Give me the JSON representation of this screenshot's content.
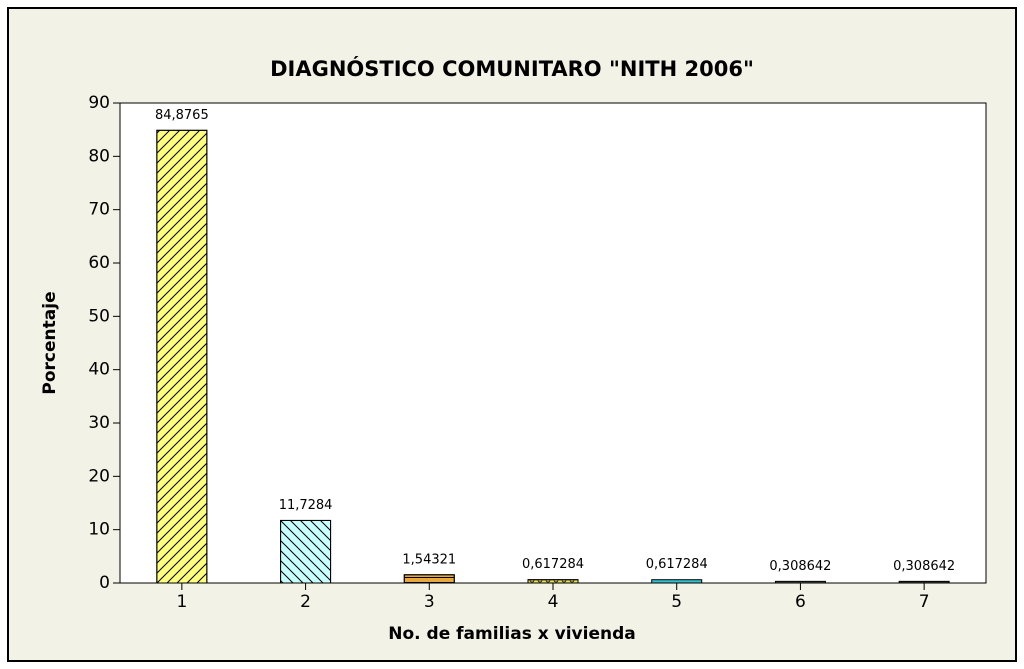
{
  "chart_data": {
    "type": "bar",
    "title": "DIAGNÓSTICO COMUNITARO \"NITH 2006\"",
    "xlabel": "No. de familias x vivienda",
    "ylabel": "Porcentaje",
    "categories": [
      "1",
      "2",
      "3",
      "4",
      "5",
      "6",
      "7"
    ],
    "values": [
      84.8765,
      11.7284,
      1.54321,
      0.617284,
      0.617284,
      0.308642,
      0.308642
    ],
    "value_labels": [
      "84,8765",
      "11,7284",
      "1,54321",
      "0,617284",
      "0,617284",
      "0,308642",
      "0,308642"
    ],
    "colors": [
      "#ffff80",
      "#c8ffff",
      "#e8a840",
      "#e8e060",
      "#30c0d0",
      "#506050",
      "#404040"
    ],
    "patterns": [
      "forward",
      "back",
      "horizontal",
      "dots",
      "solid",
      "solid",
      "solid"
    ],
    "ylim": [
      0,
      90
    ],
    "yticks": [
      0,
      10,
      20,
      30,
      40,
      50,
      60,
      70,
      80,
      90
    ],
    "grid": false
  }
}
